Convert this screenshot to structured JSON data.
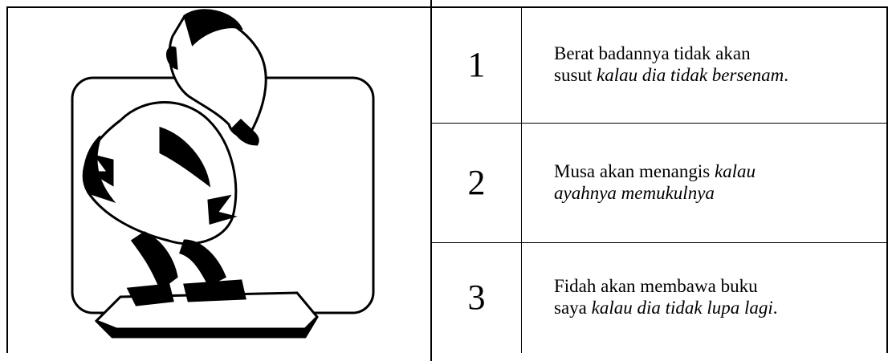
{
  "table": {
    "rows": [
      {
        "number": "1",
        "lines": [
          [
            {
              "text": "Berat badannya tidak akan",
              "style": "normal"
            }
          ],
          [
            {
              "text": "susut ",
              "style": "normal"
            },
            {
              "text": "kalau dia tidak bersenam",
              "style": "italic"
            },
            {
              "text": ".",
              "style": "normal"
            }
          ]
        ]
      },
      {
        "number": "2",
        "lines": [
          [
            {
              "text": "Musa akan menangis ",
              "style": "normal"
            },
            {
              "text": "kalau",
              "style": "italic"
            }
          ],
          [
            {
              "text": "ayahnya memukulnya",
              "style": "italic"
            }
          ]
        ]
      },
      {
        "number": "3",
        "lines": [
          [
            {
              "text": "Fidah akan membawa buku",
              "style": "normal"
            }
          ],
          [
            {
              "text": "saya ",
              "style": "normal"
            },
            {
              "text": "kalau dia tidak lupa lagi",
              "style": "italic"
            },
            {
              "text": ".",
              "style": "normal"
            }
          ]
        ]
      }
    ]
  }
}
